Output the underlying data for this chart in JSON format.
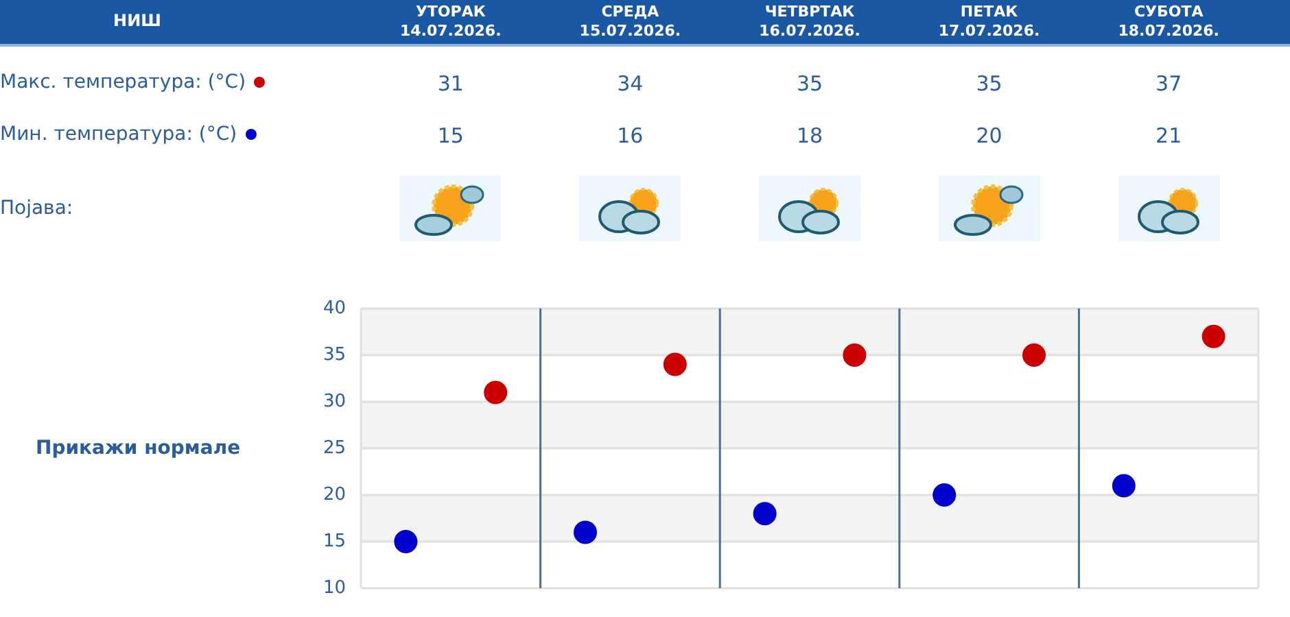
{
  "chart_data": {
    "type": "scatter",
    "title": "НИШ",
    "categories": [
      null,
      null,
      null,
      null,
      null
    ],
    "series": [
      {
        "name": "Макс. температура: (°C)",
        "color": "#cc0000",
        "values": [
          31,
          34,
          35,
          35,
          37
        ]
      },
      {
        "name": "Мин. температура: (°C)",
        "color": "#0000cc",
        "values": [
          15,
          16,
          18,
          20,
          21
        ]
      }
    ],
    "ylim": [
      10,
      40
    ],
    "yticks": [
      10,
      15,
      20,
      25,
      30,
      35,
      40
    ],
    "grid": true,
    "legend": "top left",
    "marker": "circle",
    "data_labels": true,
    "tick_labels": "y",
    "annotations": [
      "УТОРАК 14.07.2026.",
      "СРЕДА 15.07.2026.",
      "ЧЕТВРТАК 16.07.2026.",
      "ПЕТАК 17.07.2026.",
      "СУБОТА 18.07.2026.",
      "Појава:",
      "Прикажи нормале"
    ]
  }
}
